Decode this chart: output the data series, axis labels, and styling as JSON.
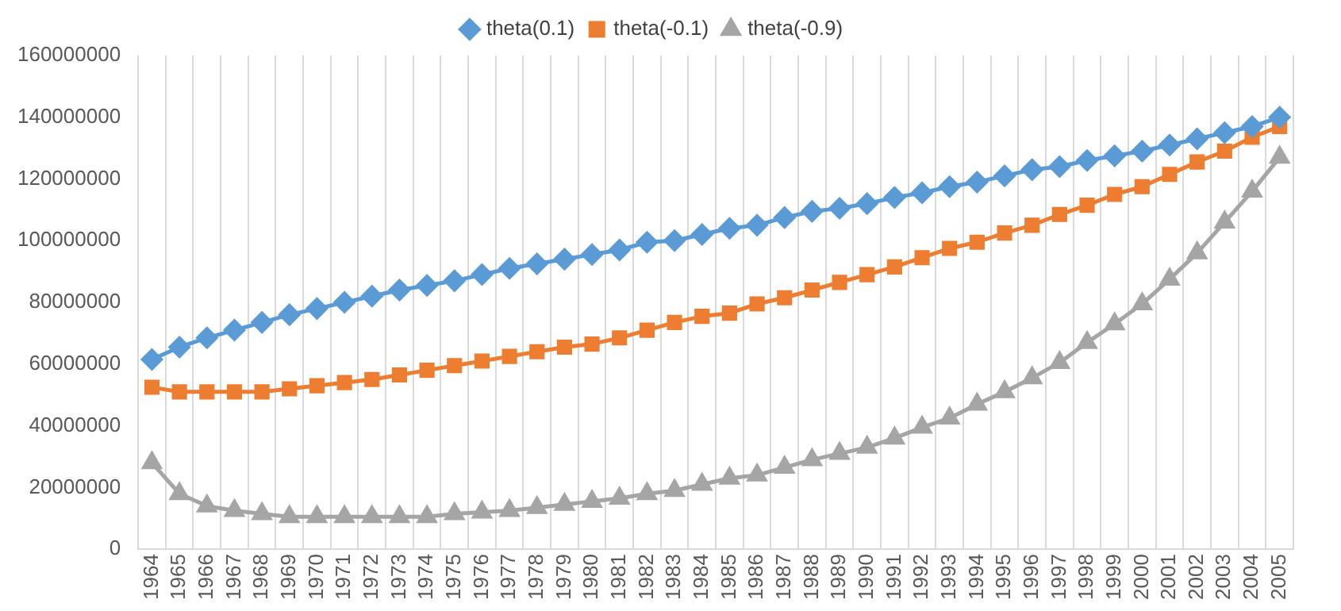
{
  "chart_data": {
    "type": "line",
    "categories": [
      "1964",
      "1965",
      "1966",
      "1967",
      "1968",
      "1969",
      "1970",
      "1971",
      "1972",
      "1973",
      "1974",
      "1975",
      "1976",
      "1977",
      "1978",
      "1979",
      "1980",
      "1981",
      "1982",
      "1983",
      "1984",
      "1985",
      "1986",
      "1987",
      "1988",
      "1989",
      "1990",
      "1991",
      "1992",
      "1993",
      "1994",
      "1995",
      "1996",
      "1997",
      "1998",
      "1999",
      "2000",
      "2001",
      "2002",
      "2003",
      "2004",
      "2005"
    ],
    "series": [
      {
        "name": "theta(0.1)",
        "color": "#5b9bd5",
        "marker": "diamond",
        "values": [
          61500000,
          65500000,
          68500000,
          71000000,
          73500000,
          76000000,
          78000000,
          80000000,
          82000000,
          84000000,
          85500000,
          87000000,
          89000000,
          91000000,
          92500000,
          94000000,
          95500000,
          97000000,
          99500000,
          100000000,
          102000000,
          104000000,
          105000000,
          107500000,
          109500000,
          110500000,
          112000000,
          114000000,
          115500000,
          117500000,
          119000000,
          121000000,
          123000000,
          124000000,
          126000000,
          127500000,
          129000000,
          131000000,
          133000000,
          135000000,
          137000000,
          140000000
        ]
      },
      {
        "name": "theta(-0.1)",
        "color": "#ed7d31",
        "marker": "square",
        "values": [
          52500000,
          51000000,
          51000000,
          51000000,
          51000000,
          52000000,
          53000000,
          54000000,
          55000000,
          56500000,
          58000000,
          59500000,
          61000000,
          62500000,
          64000000,
          65500000,
          66500000,
          68500000,
          71000000,
          73500000,
          75500000,
          76500000,
          79500000,
          81500000,
          84000000,
          86500000,
          89000000,
          91500000,
          94500000,
          97500000,
          99500000,
          102500000,
          105000000,
          108500000,
          111500000,
          115000000,
          117500000,
          121500000,
          125500000,
          129000000,
          133500000,
          137000000
        ]
      },
      {
        "name": "theta(-0.9)",
        "color": "#a5a5a5",
        "marker": "triangle",
        "values": [
          28000000,
          18000000,
          14000000,
          12500000,
          11500000,
          10500000,
          10500000,
          10500000,
          10500000,
          10500000,
          10500000,
          11500000,
          12000000,
          12500000,
          13500000,
          14500000,
          15500000,
          16500000,
          18000000,
          19000000,
          21000000,
          23000000,
          24000000,
          26500000,
          29000000,
          31000000,
          33000000,
          36000000,
          39500000,
          42500000,
          47000000,
          51000000,
          55500000,
          60500000,
          67000000,
          73000000,
          79500000,
          87500000,
          96000000,
          106000000,
          116000000,
          127000000
        ]
      }
    ],
    "ylim": [
      0,
      160000000
    ],
    "yticks": [
      0,
      20000000,
      40000000,
      60000000,
      80000000,
      100000000,
      120000000,
      140000000,
      160000000
    ],
    "grid": "x",
    "legend": "top",
    "line_style": "solid"
  }
}
